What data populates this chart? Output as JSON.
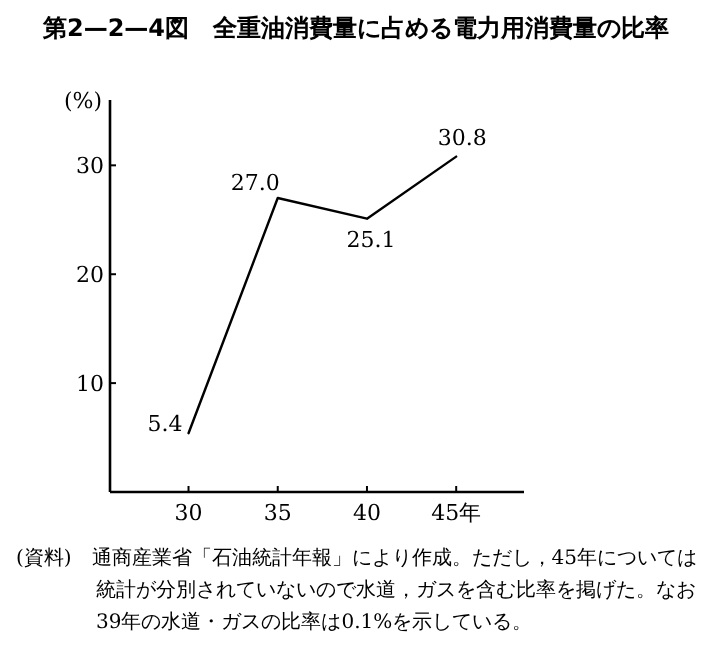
{
  "chart_data": {
    "type": "line",
    "title": "第2—2—4図　全重油消費量に占める電力用消費量の比率",
    "ylabel": "(%)",
    "x": [
      30,
      35,
      40,
      45
    ],
    "series": [
      {
        "color": "#000000",
        "values": [
          5.4,
          27.0,
          25.1,
          30.8
        ],
        "value_labels": [
          "5.4",
          "27.0",
          "25.1",
          "30.8"
        ]
      }
    ],
    "xlim": [
      25.6,
      48.8
    ],
    "ylim": [
      0,
      36
    ],
    "xticks": [
      30,
      35,
      40,
      {
        "value": 45,
        "label": "45年"
      }
    ],
    "yticks": [
      10,
      20,
      30
    ],
    "grid": false,
    "marker": "none",
    "line_style": "solid",
    "annotations": [
      "(資料)　通商産業省「石油統計年報」により作成。ただし，45年については統計が分別されていないので水道，ガスを含む比率を掲げた。なお39年の水道・ガスの比率は0.1%を示している。"
    ]
  }
}
